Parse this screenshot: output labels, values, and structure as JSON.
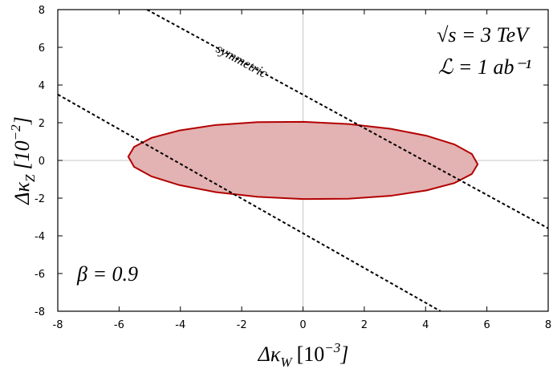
{
  "chart_data": {
    "type": "contour",
    "xlabel": [
      "Δκ",
      "W",
      "[10",
      "−3",
      "]"
    ],
    "ylabel": [
      "Δκ",
      "Z",
      "[10",
      "−2",
      "]"
    ],
    "xlim": [
      -8,
      8
    ],
    "ylim": [
      -8,
      8
    ],
    "xticks": [
      -8,
      -6,
      -4,
      -2,
      0,
      2,
      4,
      6,
      8
    ],
    "yticks": [
      -8,
      -6,
      -4,
      -2,
      0,
      2,
      4,
      6,
      8
    ],
    "zero_lines": true,
    "annotations": [
      "√s = 3 TeV",
      "ℒ = 1 ab⁻¹",
      "β = 0.9",
      "symmetric"
    ],
    "region": {
      "fill": "#e3b2b2",
      "color": "#b30000",
      "x": [
        5.7,
        5.51,
        4.94,
        4.03,
        2.85,
        1.48,
        0,
        -1.48,
        -2.85,
        -4.03,
        -4.94,
        -5.51,
        -5.7,
        -5.51,
        -4.94,
        -4.03,
        -2.85,
        -1.48,
        0,
        1.48,
        2.85,
        4.03,
        4.94,
        5.51
      ],
      "y": [
        -0.2,
        0.34,
        0.85,
        1.31,
        1.68,
        1.93,
        2.05,
        2.03,
        1.88,
        1.59,
        1.2,
        0.72,
        0.2,
        -0.34,
        -0.85,
        -1.31,
        -1.68,
        -1.93,
        -2.05,
        -2.03,
        -1.88,
        -1.59,
        -1.2,
        -0.72
      ]
    },
    "lines": [
      {
        "color": "#000000",
        "x": [
          -5.09,
          8
        ],
        "y": [
          8,
          -3.6
        ]
      },
      {
        "color": "#000000",
        "x": [
          -8,
          4.49
        ],
        "y": [
          3.5,
          -8
        ]
      }
    ]
  }
}
